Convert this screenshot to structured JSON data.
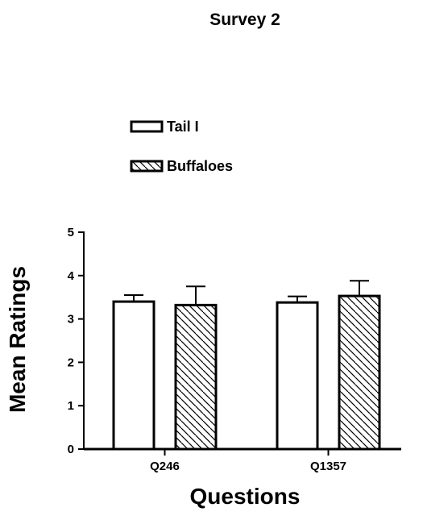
{
  "chart_data": {
    "type": "bar",
    "title": "Survey 2",
    "xlabel": "Questions",
    "ylabel": "Mean Ratings",
    "categories": [
      "Q246",
      "Q1357"
    ],
    "ylim": [
      0,
      5
    ],
    "yticks": [
      0,
      1,
      2,
      3,
      4,
      5
    ],
    "grid": false,
    "legend_position": "top-left",
    "series": [
      {
        "name": "Tail I",
        "values": [
          3.4,
          3.38
        ],
        "errors": [
          0.15,
          0.14
        ],
        "fill": "#ffffff",
        "pattern": "none"
      },
      {
        "name": "Buffaloes",
        "values": [
          3.32,
          3.53
        ],
        "errors": [
          0.43,
          0.35
        ],
        "fill": "#ffffff",
        "pattern": "diagonal-hatch"
      }
    ],
    "colors": {
      "stroke": "#000000",
      "background": "#ffffff"
    }
  }
}
